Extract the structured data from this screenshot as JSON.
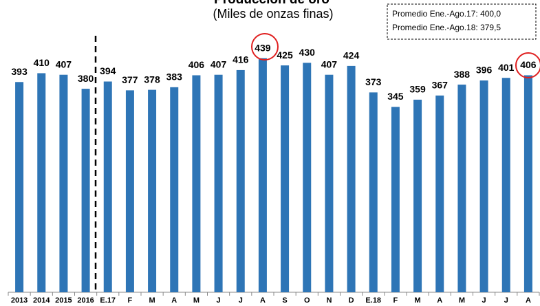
{
  "chart_data": {
    "type": "bar",
    "title": "Producción de oro",
    "subtitle": "(Miles de onzas finas)",
    "annotations": [
      "Promedio Ene.-Ago.17: 400,0",
      "Promedio Ene.-Ago.18: 379,5"
    ],
    "categories": [
      "2013",
      "2014",
      "2015",
      "2016",
      "E.17",
      "F",
      "M",
      "A",
      "M",
      "J",
      "J",
      "A",
      "S",
      "O",
      "N",
      "D",
      "E.18",
      "F",
      "M",
      "A",
      "M",
      "J",
      "J",
      "A"
    ],
    "values": [
      393,
      410,
      407,
      380,
      394,
      377,
      378,
      383,
      406,
      407,
      416,
      439,
      425,
      430,
      407,
      424,
      373,
      345,
      359,
      367,
      388,
      396,
      401,
      406
    ],
    "color": "#2e75b6"
  }
}
